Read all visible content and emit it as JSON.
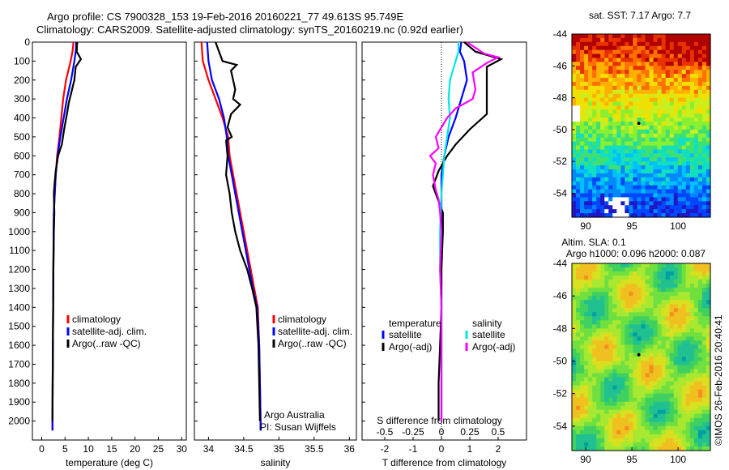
{
  "header": {
    "title_line1": "Argo profile: CS 7900328_153 19-Feb-2016 20160221_77 49.613S 95.749E",
    "title_line2": "Climatology: CARS2009. Satellite-adjusted climatology: synTS_20160219.nc (0.92d earlier)"
  },
  "chart_data": [
    {
      "type": "line",
      "xlabel": "temperature (deg C)",
      "xlim": [
        -2,
        31
      ],
      "ylim": [
        2100,
        0
      ],
      "xticks": [
        0,
        5,
        10,
        15,
        20,
        25,
        30
      ],
      "yticks": [
        0,
        100,
        200,
        300,
        400,
        500,
        600,
        700,
        800,
        900,
        1000,
        1100,
        1200,
        1300,
        1400,
        1500,
        1600,
        1700,
        1800,
        1900,
        2000
      ],
      "legend": [
        "climatology",
        "satellite-adj. clim.",
        "Argo(..raw -QC)"
      ],
      "series": [
        {
          "name": "climatology",
          "color": "#ff0000",
          "points": [
            [
              6.8,
              0
            ],
            [
              6.6,
              50
            ],
            [
              6.2,
              100
            ],
            [
              5.2,
              200
            ],
            [
              4.6,
              300
            ],
            [
              4.2,
              400
            ],
            [
              3.8,
              500
            ],
            [
              3.3,
              600
            ],
            [
              3.0,
              700
            ],
            [
              2.8,
              800
            ],
            [
              2.6,
              900
            ],
            [
              2.55,
              1000
            ],
            [
              2.5,
              1200
            ],
            [
              2.45,
              1400
            ],
            [
              2.4,
              1600
            ],
            [
              2.35,
              1800
            ],
            [
              2.3,
              2000
            ],
            [
              2.3,
              2050
            ]
          ]
        },
        {
          "name": "satellite-adj. clim.",
          "color": "#0000ff",
          "points": [
            [
              7.4,
              0
            ],
            [
              7.3,
              50
            ],
            [
              7.0,
              100
            ],
            [
              6.3,
              200
            ],
            [
              5.4,
              300
            ],
            [
              4.7,
              400
            ],
            [
              4.0,
              500
            ],
            [
              3.4,
              600
            ],
            [
              3.0,
              700
            ],
            [
              2.8,
              800
            ],
            [
              2.6,
              900
            ],
            [
              2.55,
              1000
            ],
            [
              2.5,
              1200
            ],
            [
              2.45,
              1400
            ],
            [
              2.4,
              1600
            ],
            [
              2.35,
              1800
            ],
            [
              2.3,
              2000
            ],
            [
              2.3,
              2050
            ]
          ]
        },
        {
          "name": "Argo(..raw -QC)",
          "color": "#000000",
          "points": [
            [
              7.6,
              0
            ],
            [
              7.5,
              50
            ],
            [
              8.4,
              90
            ],
            [
              7.3,
              130
            ],
            [
              7.0,
              200
            ],
            [
              6.4,
              260
            ],
            [
              5.8,
              320
            ],
            [
              5.4,
              380
            ],
            [
              4.8,
              460
            ],
            [
              4.3,
              540
            ],
            [
              3.5,
              600
            ],
            [
              3.0,
              680
            ],
            [
              2.7,
              760
            ],
            [
              2.6,
              800
            ],
            [
              2.7,
              900
            ],
            [
              2.6,
              1000
            ],
            [
              2.5,
              1200
            ],
            [
              2.45,
              1400
            ],
            [
              2.4,
              1600
            ],
            [
              2.35,
              1800
            ],
            [
              2.3,
              2000
            ]
          ]
        }
      ]
    },
    {
      "type": "line",
      "xlabel": "salinity",
      "xlim": [
        33.8,
        36.1
      ],
      "ylim": [
        2100,
        0
      ],
      "xticks": [
        34,
        34.5,
        35,
        35.5,
        36
      ],
      "legend": [
        "climatology",
        "satellite-adj. clim.",
        "Argo(..raw -QC)"
      ],
      "annotations": [
        "Argo Australia",
        "PI: Susan Wijffels"
      ],
      "series": [
        {
          "name": "climatology",
          "color": "#ff0000",
          "points": [
            [
              33.9,
              0
            ],
            [
              33.92,
              100
            ],
            [
              34.0,
              200
            ],
            [
              34.1,
              300
            ],
            [
              34.2,
              400
            ],
            [
              34.28,
              500
            ],
            [
              34.3,
              600
            ],
            [
              34.35,
              700
            ],
            [
              34.4,
              800
            ],
            [
              34.45,
              900
            ],
            [
              34.5,
              1000
            ],
            [
              34.55,
              1100
            ],
            [
              34.6,
              1200
            ],
            [
              34.65,
              1300
            ],
            [
              34.7,
              1400
            ],
            [
              34.72,
              1600
            ],
            [
              34.73,
              1800
            ],
            [
              34.74,
              2000
            ],
            [
              34.74,
              2050
            ]
          ]
        },
        {
          "name": "satellite-adj. clim.",
          "color": "#0000ff",
          "points": [
            [
              33.98,
              0
            ],
            [
              34.0,
              100
            ],
            [
              34.05,
              200
            ],
            [
              34.15,
              300
            ],
            [
              34.22,
              400
            ],
            [
              34.26,
              500
            ],
            [
              34.28,
              600
            ],
            [
              34.33,
              700
            ],
            [
              34.38,
              800
            ],
            [
              34.43,
              900
            ],
            [
              34.48,
              1000
            ],
            [
              34.53,
              1100
            ],
            [
              34.58,
              1200
            ],
            [
              34.63,
              1300
            ],
            [
              34.69,
              1400
            ],
            [
              34.72,
              1600
            ],
            [
              34.73,
              1800
            ],
            [
              34.74,
              2000
            ],
            [
              34.74,
              2050
            ]
          ]
        },
        {
          "name": "Argo(..raw -QC)",
          "color": "#000000",
          "points": [
            [
              34.1,
              0
            ],
            [
              34.15,
              50
            ],
            [
              34.2,
              100
            ],
            [
              34.4,
              120
            ],
            [
              34.32,
              150
            ],
            [
              34.38,
              250
            ],
            [
              34.35,
              300
            ],
            [
              34.45,
              330
            ],
            [
              34.32,
              380
            ],
            [
              34.27,
              450
            ],
            [
              34.33,
              500
            ],
            [
              34.25,
              520
            ],
            [
              34.27,
              600
            ],
            [
              34.25,
              700
            ],
            [
              34.3,
              800
            ],
            [
              34.33,
              900
            ],
            [
              34.38,
              1000
            ],
            [
              34.45,
              1100
            ],
            [
              34.55,
              1200
            ],
            [
              34.62,
              1300
            ],
            [
              34.68,
              1400
            ],
            [
              34.71,
              1600
            ],
            [
              34.72,
              1800
            ],
            [
              34.73,
              2000
            ]
          ]
        }
      ]
    },
    {
      "type": "line",
      "xlabel": "T difference from climatology",
      "xlabel2": "S difference from climatology",
      "xlim": [
        -2.8,
        3.0
      ],
      "ylim": [
        2100,
        0
      ],
      "xticks": [
        -2,
        -1,
        0,
        1,
        2
      ],
      "xticks2": [
        "-0.5",
        "-0.25",
        "0",
        "0.25",
        "0.5"
      ],
      "legend_headers": [
        "temperature",
        "salinity"
      ],
      "legend": [
        "satellite",
        "Argo(-adj)",
        "satellite",
        "Argo(-adj)"
      ],
      "series": [
        {
          "name": "satellite",
          "color": "#0000ff",
          "points": [
            [
              0.7,
              0
            ],
            [
              0.65,
              50
            ],
            [
              0.8,
              100
            ],
            [
              0.9,
              200
            ],
            [
              0.7,
              300
            ],
            [
              0.5,
              400
            ],
            [
              0.25,
              500
            ],
            [
              0.1,
              600
            ],
            [
              0.0,
              700
            ],
            [
              0.0,
              800
            ],
            [
              0.0,
              1000
            ],
            [
              0.0,
              1200
            ],
            [
              0.0,
              1400
            ],
            [
              0.0,
              1600
            ],
            [
              0.0,
              1800
            ],
            [
              0.0,
              2000
            ]
          ]
        },
        {
          "name": "Argo(-adj)",
          "color": "#000000",
          "points": [
            [
              0.8,
              0
            ],
            [
              1.2,
              50
            ],
            [
              2.1,
              90
            ],
            [
              1.6,
              130
            ],
            [
              1.6,
              200
            ],
            [
              1.6,
              300
            ],
            [
              1.6,
              380
            ],
            [
              1.0,
              460
            ],
            [
              0.5,
              540
            ],
            [
              0.2,
              600
            ],
            [
              -0.1,
              680
            ],
            [
              -0.3,
              760
            ],
            [
              -0.2,
              800
            ],
            [
              0.05,
              900
            ],
            [
              0.05,
              1000
            ],
            [
              0.0,
              1200
            ],
            [
              0.0,
              1400
            ],
            [
              -0.05,
              1600
            ],
            [
              -0.1,
              1800
            ],
            [
              -0.1,
              2000
            ]
          ]
        },
        {
          "name": "satellite",
          "color": "#00e5e5",
          "points": [
            [
              0.6,
              0
            ],
            [
              0.6,
              50
            ],
            [
              0.5,
              100
            ],
            [
              0.3,
              200
            ],
            [
              0.25,
              300
            ],
            [
              0.3,
              400
            ],
            [
              0.2,
              500
            ],
            [
              0.1,
              600
            ],
            [
              0.05,
              700
            ],
            [
              0.0,
              800
            ],
            [
              -0.05,
              1000
            ],
            [
              -0.05,
              1200
            ],
            [
              0.0,
              1400
            ],
            [
              0.0,
              1600
            ],
            [
              0.0,
              1800
            ],
            [
              0.0,
              2000
            ]
          ]
        },
        {
          "name": "Argo(-adj)",
          "color": "#ff00ff",
          "points": [
            [
              0.9,
              0
            ],
            [
              1.5,
              60
            ],
            [
              2.0,
              80
            ],
            [
              1.6,
              110
            ],
            [
              1.1,
              160
            ],
            [
              1.2,
              250
            ],
            [
              1.1,
              300
            ],
            [
              0.5,
              350
            ],
            [
              0.2,
              400
            ],
            [
              0.0,
              450
            ],
            [
              -0.2,
              500
            ],
            [
              -0.1,
              560
            ],
            [
              -0.4,
              600
            ],
            [
              -0.2,
              640
            ],
            [
              -0.3,
              700
            ],
            [
              -0.2,
              780
            ],
            [
              -0.1,
              830
            ],
            [
              -0.05,
              900
            ],
            [
              0.0,
              1000
            ],
            [
              -0.05,
              1200
            ],
            [
              0.0,
              1400
            ],
            [
              0.0,
              1600
            ],
            [
              0.0,
              1800
            ],
            [
              0.0,
              2000
            ]
          ]
        }
      ]
    },
    {
      "type": "heatmap",
      "title": "sat. SST: 7.17  Argo: 7.7",
      "xlim": [
        88.5,
        103.5
      ],
      "ylim": [
        -55.5,
        -44
      ],
      "xticks": [
        90,
        95,
        100
      ],
      "yticks": [
        -44,
        -46,
        -48,
        -50,
        -52,
        -54
      ]
    },
    {
      "type": "heatmap",
      "title": "Altim. SLA: 0.1",
      "subtitle": "Argo h1000: 0.096 h2000: 0.087",
      "xlim": [
        88.5,
        103.5
      ],
      "ylim": [
        -55.5,
        -44
      ],
      "xticks": [
        90,
        95,
        100
      ],
      "yticks": [
        -44,
        -46,
        -48,
        -50,
        -52,
        -54
      ]
    }
  ],
  "footer": {
    "stamp": "©IMOS 26-Feb-2016 20:40:41"
  }
}
